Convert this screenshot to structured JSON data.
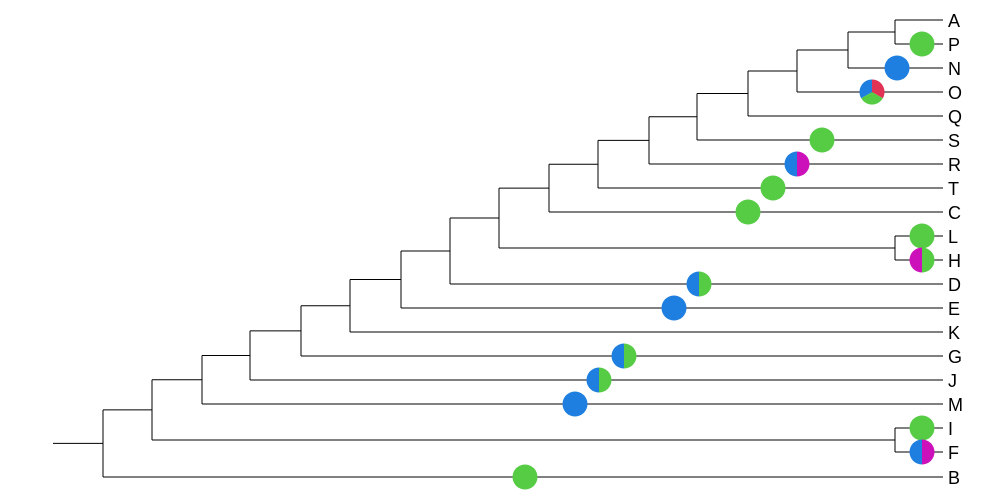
{
  "tree": {
    "tips": [
      "A",
      "P",
      "N",
      "O",
      "Q",
      "S",
      "R",
      "T",
      "C",
      "L",
      "H",
      "D",
      "E",
      "K",
      "G",
      "J",
      "M",
      "I",
      "F",
      "B"
    ],
    "pie_colors": {
      "blue": "#1e7fe0",
      "green": "#55cc44",
      "magenta": "#cc11bb",
      "red": "#e03355"
    },
    "markers": [
      {
        "tip": "P",
        "slices": [
          [
            "green",
            1
          ]
        ]
      },
      {
        "tip": "N",
        "slices": [
          [
            "blue",
            1
          ]
        ]
      },
      {
        "tip": "O",
        "slices": [
          [
            "red",
            0.333
          ],
          [
            "green",
            0.334
          ],
          [
            "blue",
            0.333
          ]
        ]
      },
      {
        "tip": "S",
        "slices": [
          [
            "green",
            1
          ]
        ]
      },
      {
        "tip": "R",
        "slices": [
          [
            "magenta",
            0.5
          ],
          [
            "blue",
            0.5
          ]
        ]
      },
      {
        "tip": "T",
        "slices": [
          [
            "green",
            1
          ]
        ]
      },
      {
        "tip": "C",
        "slices": [
          [
            "green",
            1
          ]
        ]
      },
      {
        "tip": "L",
        "slices": [
          [
            "green",
            1
          ]
        ]
      },
      {
        "tip": "H",
        "slices": [
          [
            "green",
            0.5
          ],
          [
            "magenta",
            0.5
          ]
        ]
      },
      {
        "tip": "D",
        "slices": [
          [
            "green",
            0.5
          ],
          [
            "blue",
            0.5
          ]
        ]
      },
      {
        "tip": "E",
        "slices": [
          [
            "blue",
            1
          ]
        ]
      },
      {
        "tip": "G",
        "slices": [
          [
            "green",
            0.5
          ],
          [
            "blue",
            0.5
          ]
        ]
      },
      {
        "tip": "J",
        "slices": [
          [
            "green",
            0.5
          ],
          [
            "blue",
            0.5
          ]
        ]
      },
      {
        "tip": "M",
        "slices": [
          [
            "blue",
            1
          ]
        ]
      },
      {
        "tip": "I",
        "slices": [
          [
            "green",
            1
          ]
        ]
      },
      {
        "tip": "F",
        "slices": [
          [
            "magenta",
            0.5
          ],
          [
            "blue",
            0.5
          ]
        ]
      },
      {
        "tip": "B",
        "slices": [
          [
            "green",
            1
          ]
        ]
      }
    ]
  }
}
